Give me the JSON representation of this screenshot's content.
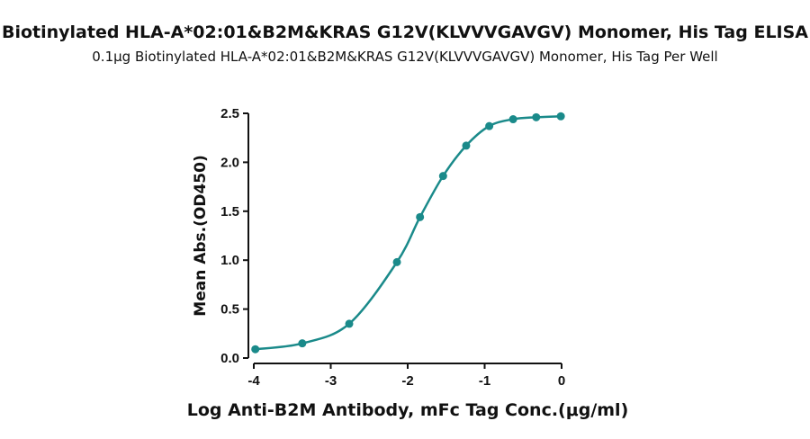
{
  "chart_data": {
    "type": "scatter",
    "title": "Biotinylated HLA-A*02:01&B2M&KRAS G12V(KLVVVGAVGV) Monomer, His Tag ELISA",
    "subtitle": "0.1μg Biotinylated HLA-A*02:01&B2M&KRAS G12V(KLVVVGAVGV) Monomer, His Tag Per Well",
    "x_label": "Log Anti-B2M Antibody, mFc Tag Conc.(μg/ml)",
    "y_label": "Mean Abs.(OD450)",
    "series": [
      {
        "color": "#1a8a8a",
        "x": [
          -3.98,
          -3.37,
          -2.76,
          -2.14,
          -1.84,
          -1.54,
          -1.24,
          -0.94,
          -0.63,
          -0.33,
          -0.01
        ],
        "values": [
          0.09,
          0.15,
          0.35,
          0.98,
          1.44,
          1.86,
          2.17,
          2.37,
          2.44,
          2.46,
          2.47
        ]
      }
    ],
    "xlim": [
      -4,
      0
    ],
    "xticks": [
      -4,
      -3,
      -2,
      -1,
      0
    ],
    "ylim": [
      0,
      2.5
    ],
    "yticks": [
      {
        "value": 0,
        "label": "0.0"
      },
      0.5,
      {
        "value": 1,
        "label": "1.0"
      },
      1.5,
      {
        "value": 2,
        "label": "2.0"
      },
      2.5
    ],
    "fit_curve": true
  }
}
